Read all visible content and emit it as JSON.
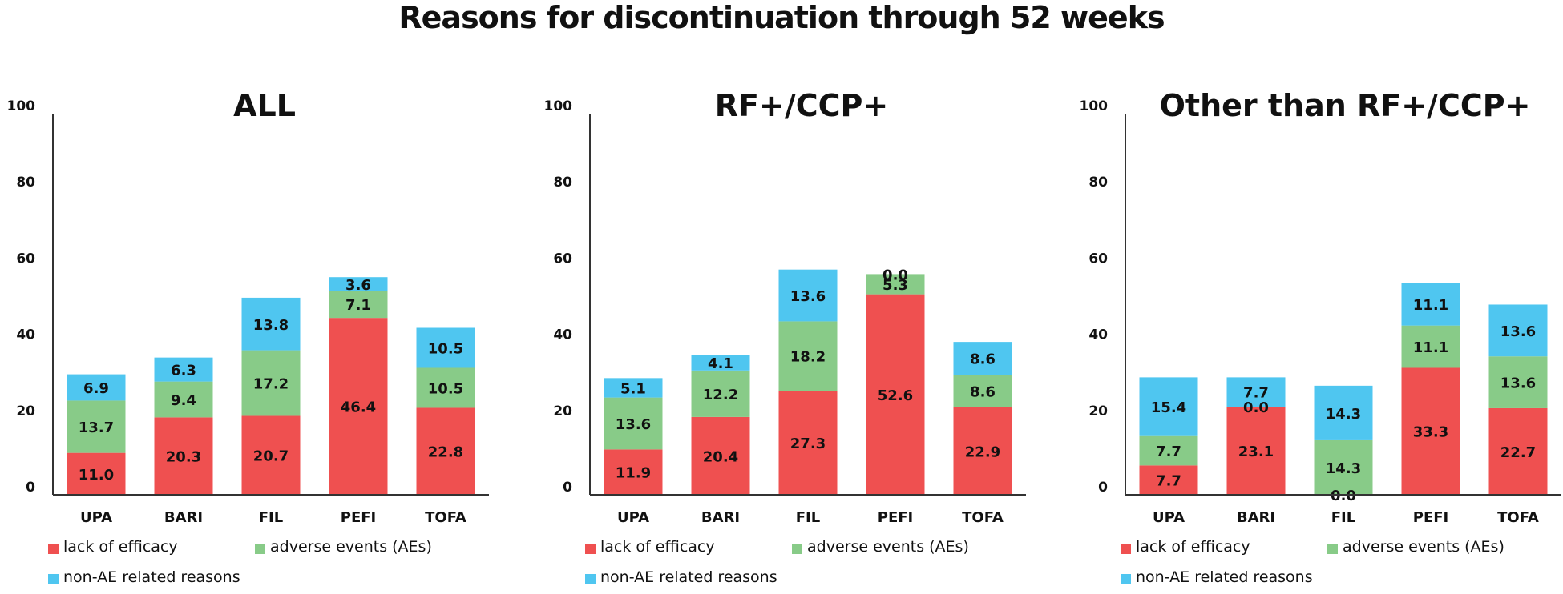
{
  "title": "Reasons for discontinuation through 52 weeks",
  "colors": {
    "lack_of_efficacy": "#ef5050",
    "adverse_events": "#88cb88",
    "non_ae": "#4fc6f0",
    "axis": "#333333"
  },
  "chart_data": [
    {
      "type": "bar",
      "stacked": true,
      "title": "ALL",
      "xlabel": "",
      "ylabel": "",
      "ylim": [
        0,
        100
      ],
      "yticks": [
        "0",
        "20",
        "40",
        "60",
        "80",
        "100"
      ],
      "grid": false,
      "legend_position": "bottom",
      "categories": [
        "UPA",
        "BARI",
        "FIL",
        "PEFI",
        "TOFA"
      ],
      "series": [
        {
          "name": "lack of efficacy",
          "color_key": "lack_of_efficacy",
          "values": [
            11.0,
            20.3,
            20.7,
            46.4,
            22.8
          ],
          "labels": [
            "11.0",
            "20.3",
            "20.7",
            "46.4",
            "22.8"
          ]
        },
        {
          "name": "adverse events (AEs)",
          "color_key": "adverse_events",
          "values": [
            13.7,
            9.4,
            17.2,
            7.1,
            10.5
          ],
          "labels": [
            "13.7",
            "9.4",
            "17.2",
            "7.1",
            "10.5"
          ]
        },
        {
          "name": "non-AE related reasons",
          "color_key": "non_ae",
          "values": [
            6.9,
            6.3,
            13.8,
            3.6,
            10.5
          ],
          "labels": [
            "6.9",
            "6.3",
            "13.8",
            "3.6",
            "10.5"
          ]
        }
      ]
    },
    {
      "type": "bar",
      "stacked": true,
      "title": "RF+/CCP+",
      "xlabel": "",
      "ylabel": "",
      "ylim": [
        0,
        100
      ],
      "yticks": [
        "0",
        "20",
        "40",
        "60",
        "80",
        "100"
      ],
      "grid": false,
      "legend_position": "bottom",
      "categories": [
        "UPA",
        "BARI",
        "FIL",
        "PEFI",
        "TOFA"
      ],
      "series": [
        {
          "name": "lack of efficacy",
          "color_key": "lack_of_efficacy",
          "values": [
            11.9,
            20.4,
            27.3,
            52.6,
            22.9
          ],
          "labels": [
            "11.9",
            "20.4",
            "27.3",
            "52.6",
            "22.9"
          ]
        },
        {
          "name": "adverse events (AEs)",
          "color_key": "adverse_events",
          "values": [
            13.6,
            12.2,
            18.2,
            5.3,
            8.6
          ],
          "labels": [
            "13.6",
            "12.2",
            "18.2",
            "5.3",
            "8.6"
          ]
        },
        {
          "name": "non-AE related reasons",
          "color_key": "non_ae",
          "values": [
            5.1,
            4.1,
            13.6,
            0.0,
            8.6
          ],
          "labels": [
            "5.1",
            "4.1",
            "13.6",
            "0.0",
            "8.6"
          ]
        }
      ]
    },
    {
      "type": "bar",
      "stacked": true,
      "title": "Other than RF+/CCP+",
      "xlabel": "",
      "ylabel": "",
      "ylim": [
        0,
        100
      ],
      "yticks": [
        "0",
        "20",
        "40",
        "60",
        "80",
        "100"
      ],
      "grid": false,
      "legend_position": "bottom",
      "categories": [
        "UPA",
        "BARI",
        "FIL",
        "PEFI",
        "TOFA"
      ],
      "series": [
        {
          "name": "lack of efficacy",
          "color_key": "lack_of_efficacy",
          "values": [
            7.7,
            23.1,
            0.0,
            33.3,
            22.7
          ],
          "labels": [
            "7.7",
            "23.1",
            "0.0",
            "33.3",
            "22.7"
          ]
        },
        {
          "name": "adverse events (AEs)",
          "color_key": "adverse_events",
          "values": [
            7.7,
            0.0,
            14.3,
            11.1,
            13.6
          ],
          "labels": [
            "7.7",
            "0.0",
            "14.3",
            "11.1",
            "13.6"
          ]
        },
        {
          "name": "non-AE related reasons",
          "color_key": "non_ae",
          "values": [
            15.4,
            7.7,
            14.3,
            11.1,
            13.6
          ],
          "labels": [
            "15.4",
            "7.7",
            "14.3",
            "11.1",
            "13.6"
          ]
        }
      ]
    }
  ],
  "legend": {
    "items": [
      {
        "label": "lack of efficacy",
        "color_key": "lack_of_efficacy"
      },
      {
        "label": "adverse events (AEs)",
        "color_key": "adverse_events"
      },
      {
        "label": "non-AE related reasons",
        "color_key": "non_ae"
      }
    ]
  }
}
